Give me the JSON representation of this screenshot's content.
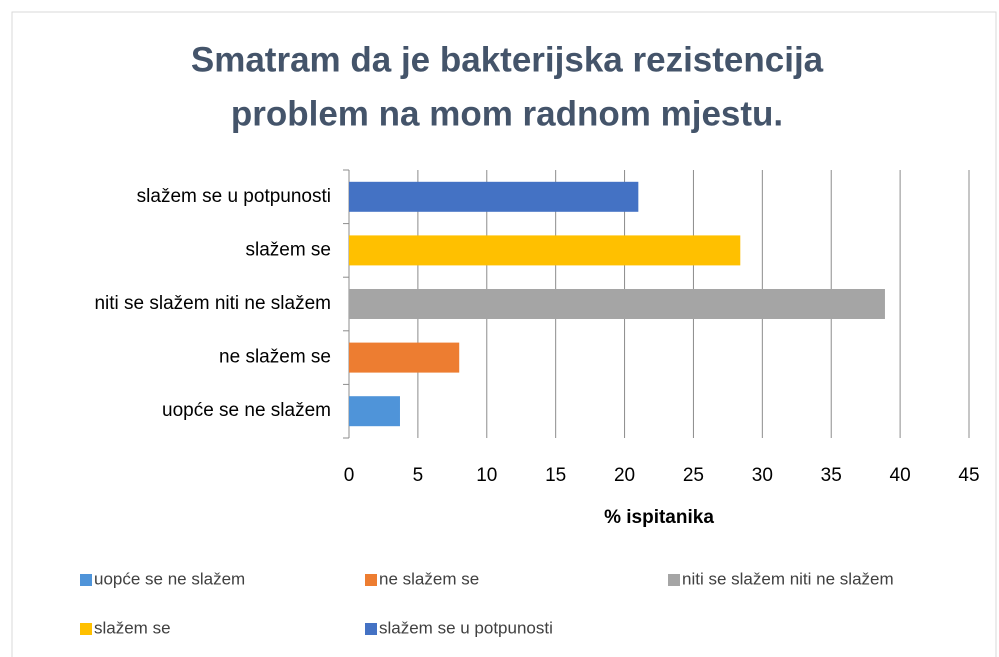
{
  "chart_data": {
    "type": "barh",
    "title": [
      "Smatram da je bakterijska rezistencija",
      "problem na mom radnom mjestu."
    ],
    "xlabel": "% ispitanika",
    "categories": [
      "uopće se ne slažem",
      "ne slažem se",
      "niti se slažem niti ne slažem",
      "slažem se",
      "slažem se u potpunosti"
    ],
    "values": [
      3.7,
      8,
      38.9,
      28.4,
      21
    ],
    "colors": [
      "#4f94d9",
      "#ed7d31",
      "#a5a5a5",
      "#ffc000",
      "#4472c4"
    ],
    "xlim": [
      0,
      45
    ],
    "xticks": [
      0,
      5,
      10,
      15,
      20,
      25,
      30,
      35,
      40,
      45
    ],
    "grid": true
  }
}
